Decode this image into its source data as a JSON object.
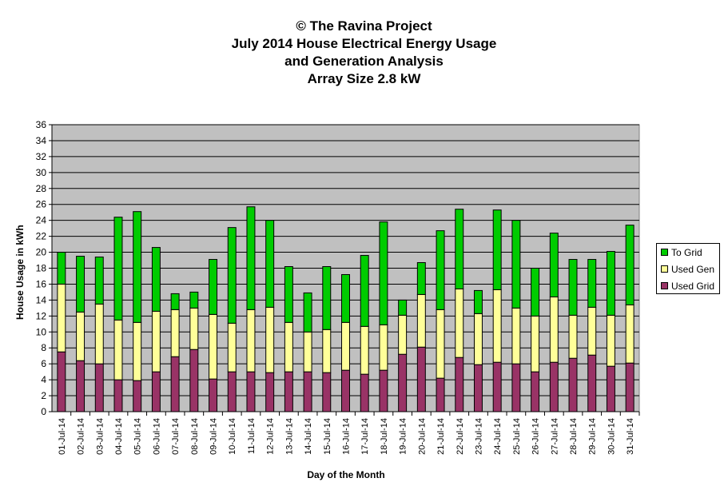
{
  "chart_data": {
    "type": "bar",
    "stacked": true,
    "title_lines": [
      "© The Ravina Project",
      "July 2014 House Electrical Energy Usage",
      "and Generation Analysis",
      "Array Size 2.8 kW"
    ],
    "xlabel": "Day of the Month",
    "ylabel": "House Usage in kWh",
    "ylim": [
      0,
      36
    ],
    "ytick_step": 2,
    "grid": true,
    "legend_position": "right",
    "plot_background": "#c0c0c0",
    "categories": [
      "01-Jul-14",
      "02-Jul-14",
      "03-Jul-14",
      "04-Jul-14",
      "05-Jul-14",
      "06-Jul-14",
      "07-Jul-14",
      "08-Jul-14",
      "09-Jul-14",
      "10-Jul-14",
      "11-Jul-14",
      "12-Jul-14",
      "13-Jul-14",
      "14-Jul-14",
      "15-Jul-14",
      "16-Jul-14",
      "17-Jul-14",
      "18-Jul-14",
      "19-Jul-14",
      "20-Jul-14",
      "21-Jul-14",
      "22-Jul-14",
      "23-Jul-14",
      "24-Jul-14",
      "25-Jul-14",
      "26-Jul-14",
      "27-Jul-14",
      "28-Jul-14",
      "29-Jul-14",
      "30-Jul-14",
      "31-Jul-14"
    ],
    "series": [
      {
        "name": "Used Grid",
        "color": "#993366",
        "values": [
          7.5,
          6.4,
          6.0,
          4.0,
          3.9,
          5.0,
          6.9,
          7.8,
          4.1,
          5.0,
          5.0,
          4.9,
          5.0,
          5.0,
          4.9,
          5.2,
          4.7,
          5.2,
          7.2,
          8.1,
          4.2,
          6.8,
          5.9,
          6.2,
          6.0,
          5.0,
          6.2,
          6.7,
          7.1,
          5.7,
          6.1
        ]
      },
      {
        "name": "Used Gen",
        "color": "#ffff99",
        "values": [
          8.5,
          6.1,
          7.5,
          7.5,
          7.3,
          7.6,
          5.9,
          5.2,
          8.1,
          6.1,
          7.8,
          8.2,
          6.2,
          5.0,
          5.4,
          6.0,
          6.0,
          5.7,
          4.9,
          6.6,
          8.6,
          8.6,
          6.4,
          9.1,
          7.0,
          7.0,
          8.2,
          5.4,
          6.0,
          6.4,
          7.3
        ]
      },
      {
        "name": "To Grid",
        "color": "#00cc00",
        "values": [
          4.0,
          7.0,
          5.9,
          12.9,
          13.9,
          8.0,
          2.0,
          2.0,
          6.9,
          12.0,
          12.9,
          10.9,
          7.0,
          4.9,
          7.9,
          6.0,
          8.9,
          12.9,
          1.9,
          4.0,
          9.9,
          10.0,
          2.9,
          10.0,
          11.0,
          6.0,
          8.0,
          7.0,
          6.0,
          8.0,
          10.0
        ]
      }
    ]
  }
}
